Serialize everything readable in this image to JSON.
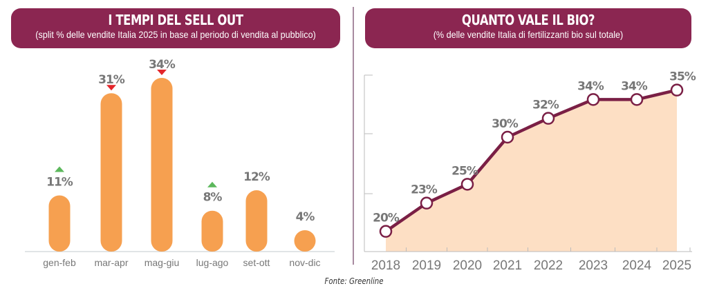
{
  "source": "Fonte: Greenline",
  "colors": {
    "header_bg": "#8b2651",
    "bar": "#f6a050",
    "label": "#777777",
    "arrow_up": "#5cb85c",
    "arrow_down": "#e3262b",
    "line": "#7a1f45",
    "area": "#fddfc4"
  },
  "chart_data": [
    {
      "type": "bar",
      "title": "I TEMPI DEL SELL OUT",
      "subtitle": "(split % delle vendite Italia 2025 in base al periodo di vendita al pubblico)",
      "categories": [
        "gen-feb",
        "mar-apr",
        "mag-giu",
        "lug-ago",
        "set-ott",
        "nov-dic"
      ],
      "values": [
        11,
        31,
        34,
        8,
        12,
        4
      ],
      "labels": [
        "11%",
        "31%",
        "34%",
        "8%",
        "12%",
        "4%"
      ],
      "trend": [
        "up",
        "down",
        "down",
        "up",
        "none",
        "none"
      ],
      "xlabel": "",
      "ylabel": "",
      "ylim": [
        0,
        34
      ],
      "grid": false
    },
    {
      "type": "area",
      "title": "QUANTO VALE IL BIO?",
      "subtitle": "(% delle vendite Italia di fertilizzanti bio sul totale)",
      "x": [
        "2018",
        "2019",
        "2020",
        "2021",
        "2022",
        "2023",
        "2024",
        "2025"
      ],
      "values": [
        20,
        23,
        25,
        30,
        32,
        34,
        34,
        35
      ],
      "labels": [
        "20%",
        "23%",
        "25%",
        "30%",
        "32%",
        "34%",
        "34%",
        "35%"
      ],
      "xlabel": "",
      "ylabel": "",
      "ylim": [
        18,
        36
      ],
      "grid": false
    }
  ]
}
